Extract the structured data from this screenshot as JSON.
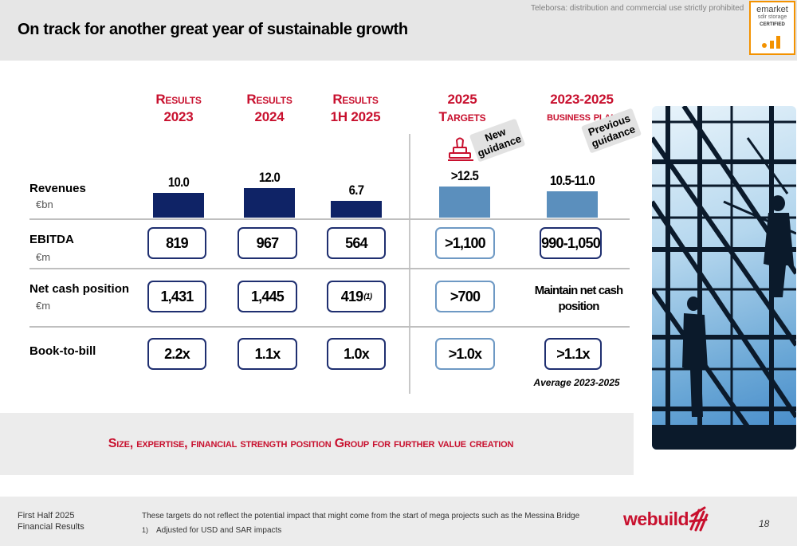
{
  "header": {
    "title": "On track for another great year of sustainable growth",
    "disclaimer": "Teleborsa: distribution and commercial use strictly prohibited",
    "badge": {
      "name": "emarket",
      "sub": "sdir storage",
      "status": "CERTIFIED"
    }
  },
  "columns": [
    {
      "line1": "Results",
      "line2": "2023"
    },
    {
      "line1": "Results",
      "line2": "2024"
    },
    {
      "line1": "Results",
      "line2": "1H 2025"
    },
    {
      "line1": "2025",
      "line2": "Targets"
    },
    {
      "line1": "2023-2025",
      "line2": "business plan"
    }
  ],
  "tags": {
    "new": "New guidance",
    "previous": "Previous guidance"
  },
  "rows": {
    "revenues": {
      "label": "Revenues",
      "unit": "€bn",
      "values": [
        "10.0",
        "12.0",
        "6.7",
        ">12.5",
        "10.5-11.0"
      ]
    },
    "ebitda": {
      "label": "EBITDA",
      "unit": "€m",
      "values": [
        "819",
        "967",
        "564",
        ">1,100",
        "990-1,050"
      ]
    },
    "net_cash": {
      "label": "Net cash position",
      "unit": "€m",
      "values": [
        "1,431",
        "1,445",
        "419",
        ">700",
        "Maintain net cash position"
      ],
      "footnote_mark": "(1)"
    },
    "book_to_bill": {
      "label": "Book-to-bill",
      "values": [
        "2.2x",
        "1.1x",
        "1.0x",
        ">1.0x",
        ">1.1x"
      ],
      "note": "Average 2023-2025"
    }
  },
  "chart_data": {
    "type": "bar",
    "title": "Revenues",
    "ylabel": "€bn",
    "categories": [
      "Results 2023",
      "Results 2024",
      "Results 1H 2025",
      "2025 Targets",
      "2023-2025 business plan"
    ],
    "values": [
      10.0,
      12.0,
      6.7,
      12.5,
      10.5
    ],
    "labels": [
      "10.0",
      "12.0",
      "6.7",
      ">12.5",
      "10.5-11.0"
    ],
    "ylim": [
      0,
      13
    ]
  },
  "tagline": "Size, expertise, financial strength position Group for further value creation",
  "footer": {
    "period_line1": "First Half 2025",
    "period_line2": "Financial Results",
    "note": "These targets do not reflect the potential impact that might come from the start of mega projects such as the Messina Bridge",
    "footnote_num": "1)",
    "footnote_text": "Adjusted for USD and SAR impacts",
    "logo": "webuild",
    "page": "18"
  },
  "colors": {
    "accent": "#c8102e",
    "navy": "#0f2366",
    "light_blue": "#5b8fbd",
    "badge_orange": "#f39200"
  }
}
